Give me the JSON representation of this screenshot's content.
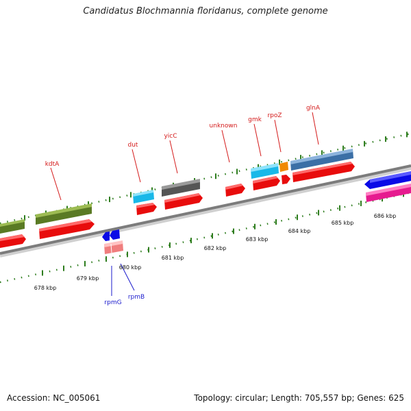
{
  "title": "Candidatus Blochmannia floridanus, complete genome",
  "footer": {
    "accession": "Accession: NC_005061",
    "stats": "Topology: circular; Length: 705,557 bp; Genes: 625"
  },
  "colors": {
    "backbone": "#8a8a8a",
    "tick": "#2e7d1e",
    "label_forward": "#d41a1a",
    "label_reverse": "#1a1acc"
  },
  "tick_labels": [
    "678 kbp",
    "679 kbp",
    "680 kbp",
    "681 kbp",
    "682 kbp",
    "683 kbp",
    "684 kbp",
    "685 kbp",
    "686 kbp"
  ],
  "genes": [
    {
      "name": "kdtA",
      "strand": "forward",
      "labeled": true
    },
    {
      "name": "dut",
      "strand": "forward",
      "labeled": true
    },
    {
      "name": "yicC",
      "strand": "forward",
      "labeled": true
    },
    {
      "name": "unknown",
      "strand": "forward",
      "labeled": true
    },
    {
      "name": "gmk",
      "strand": "forward",
      "labeled": true
    },
    {
      "name": "rpoZ",
      "strand": "forward",
      "labeled": true
    },
    {
      "name": "glnA",
      "strand": "forward",
      "labeled": true
    },
    {
      "name": "rpmG",
      "strand": "reverse",
      "labeled": true
    },
    {
      "name": "rpmB",
      "strand": "reverse",
      "labeled": true
    }
  ]
}
